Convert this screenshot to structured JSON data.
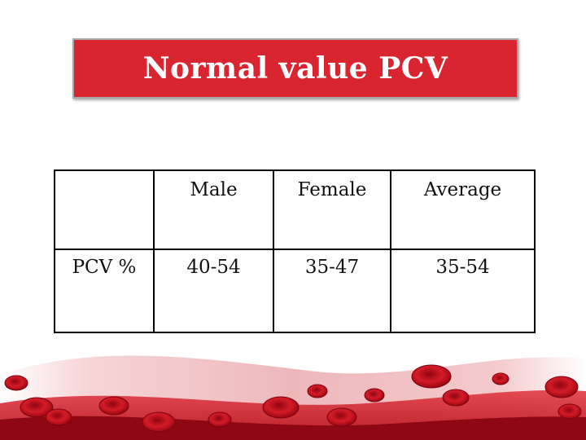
{
  "title": "Normal value PCV",
  "table": {
    "header": [
      "",
      "Male",
      "Female",
      "Average"
    ],
    "rows": [
      [
        "PCV %",
        "40-54",
        "35-47",
        "35-54"
      ]
    ]
  },
  "colors": {
    "title_bg": "#d9252f",
    "title_text": "#ffffff",
    "blood_cell": "#c8101e"
  }
}
